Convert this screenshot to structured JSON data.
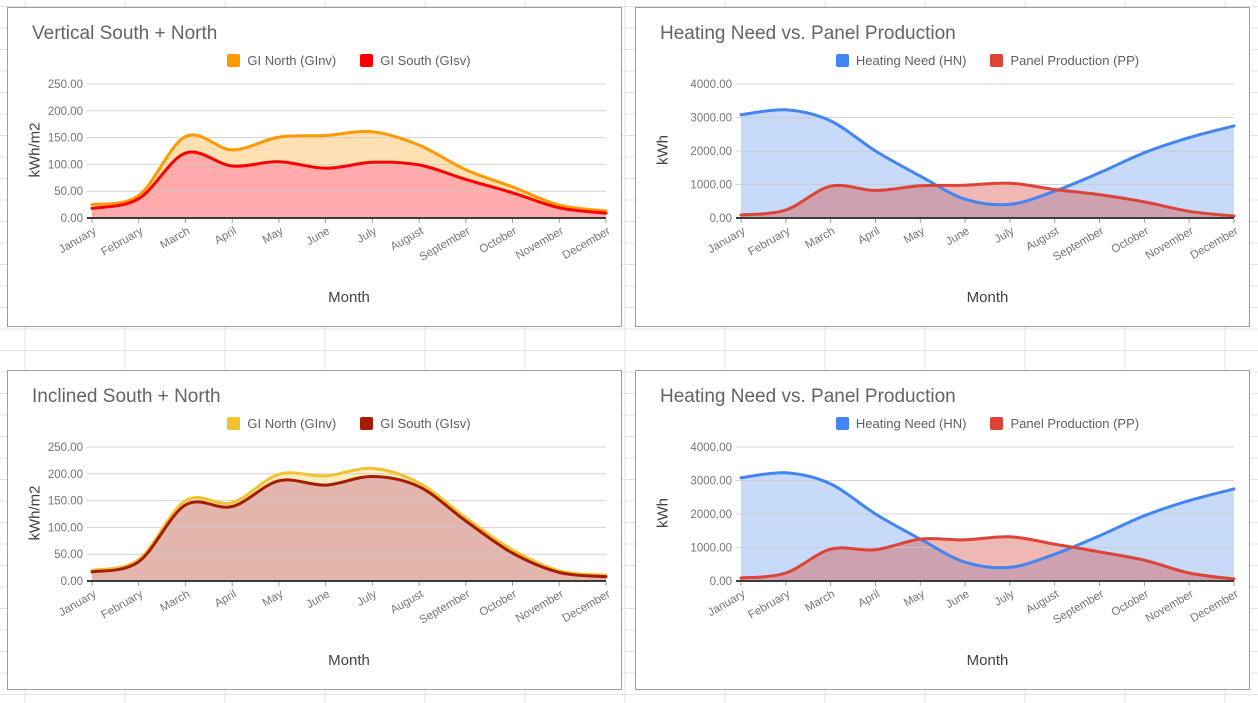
{
  "sheet": {
    "grid_color": "#e3e3e3",
    "background": "#ffffff",
    "chart_border_color": "#9c9c9c"
  },
  "months": [
    "January",
    "February",
    "March",
    "April",
    "May",
    "June",
    "July",
    "August",
    "September",
    "October",
    "November",
    "December"
  ],
  "chart_data": [
    {
      "type": "area",
      "title": "Vertical South + North",
      "categories": [
        "January",
        "February",
        "March",
        "April",
        "May",
        "June",
        "July",
        "August",
        "September",
        "October",
        "November",
        "December"
      ],
      "series": [
        {
          "name": "GI North (GInv)",
          "color": "#FF9900",
          "fill": "#FFE0B2",
          "fill_opacity": 1,
          "values": [
            25,
            42,
            152,
            127,
            151,
            154,
            161,
            136,
            90,
            58,
            24,
            13
          ]
        },
        {
          "name": "GI South (GIsv)",
          "color": "#FF0000",
          "fill": "#FFABAB",
          "fill_opacity": 1,
          "values": [
            18,
            36,
            121,
            97,
            105,
            93,
            104,
            99,
            72,
            47,
            19,
            9
          ]
        }
      ],
      "ylabel": "kWh/m2",
      "xlabel": "Month",
      "ylim": [
        0,
        250
      ],
      "y_ticks": [
        "0.00",
        "50.00",
        "100.00",
        "150.00",
        "200.00",
        "250.00"
      ],
      "legend_position": "top",
      "grid": true,
      "smooth": true
    },
    {
      "type": "area",
      "title": "Heating Need vs. Panel Production",
      "categories": [
        "January",
        "February",
        "March",
        "April",
        "May",
        "June",
        "July",
        "August",
        "September",
        "October",
        "November",
        "December"
      ],
      "series": [
        {
          "name": "Heating Need (HN)",
          "color": "#4285F4",
          "fill": "#C7DAFA",
          "fill_opacity": 1,
          "values": [
            3080,
            3230,
            2900,
            2000,
            1250,
            560,
            410,
            800,
            1350,
            1950,
            2400,
            2750
          ]
        },
        {
          "name": "Panel Production (PP)",
          "color": "#DB4437",
          "fill": "#DB4437",
          "fill_opacity": 0.38,
          "values": [
            90,
            240,
            950,
            820,
            960,
            980,
            1040,
            850,
            700,
            480,
            200,
            60
          ]
        }
      ],
      "ylabel": "kWh",
      "xlabel": "Month",
      "ylim": [
        0,
        4000
      ],
      "y_ticks": [
        "0.00",
        "1000.00",
        "2000.00",
        "3000.00",
        "4000.00"
      ],
      "legend_position": "top",
      "grid": true,
      "smooth": true
    },
    {
      "type": "area",
      "title": "Inclined South + North",
      "categories": [
        "January",
        "February",
        "March",
        "April",
        "May",
        "June",
        "July",
        "August",
        "September",
        "October",
        "November",
        "December"
      ],
      "series": [
        {
          "name": "GI North (GInv)",
          "color": "#F1C232",
          "fill": "#FBEDC2",
          "fill_opacity": 1,
          "values": [
            20,
            40,
            150,
            146,
            199,
            196,
            210,
            183,
            118,
            58,
            19,
            11
          ]
        },
        {
          "name": "GI South (GIsv)",
          "color": "#A61C00",
          "fill": "#E2B5AD",
          "fill_opacity": 1,
          "values": [
            17,
            36,
            142,
            139,
            187,
            179,
            195,
            176,
            112,
            52,
            16,
            8
          ]
        }
      ],
      "ylabel": "kWh/m2",
      "xlabel": "Month",
      "ylim": [
        0,
        250
      ],
      "y_ticks": [
        "0.00",
        "50.00",
        "100.00",
        "150.00",
        "200.00",
        "250.00"
      ],
      "legend_position": "top",
      "grid": true,
      "smooth": true
    },
    {
      "type": "area",
      "title": "Heating Need vs. Panel Production",
      "categories": [
        "January",
        "February",
        "March",
        "April",
        "May",
        "June",
        "July",
        "August",
        "September",
        "October",
        "November",
        "December"
      ],
      "series": [
        {
          "name": "Heating Need (HN)",
          "color": "#4285F4",
          "fill": "#C7DAFA",
          "fill_opacity": 1,
          "values": [
            3080,
            3230,
            2900,
            2000,
            1250,
            560,
            410,
            800,
            1350,
            1950,
            2400,
            2750
          ]
        },
        {
          "name": "Panel Production (PP)",
          "color": "#DB4437",
          "fill": "#DB4437",
          "fill_opacity": 0.38,
          "values": [
            90,
            240,
            950,
            930,
            1250,
            1230,
            1320,
            1100,
            870,
            620,
            240,
            60
          ]
        }
      ],
      "ylabel": "kWh",
      "xlabel": "Month",
      "ylim": [
        0,
        4000
      ],
      "y_ticks": [
        "0.00",
        "1000.00",
        "2000.00",
        "3000.00",
        "4000.00"
      ],
      "legend_position": "top",
      "grid": true,
      "smooth": true
    }
  ]
}
